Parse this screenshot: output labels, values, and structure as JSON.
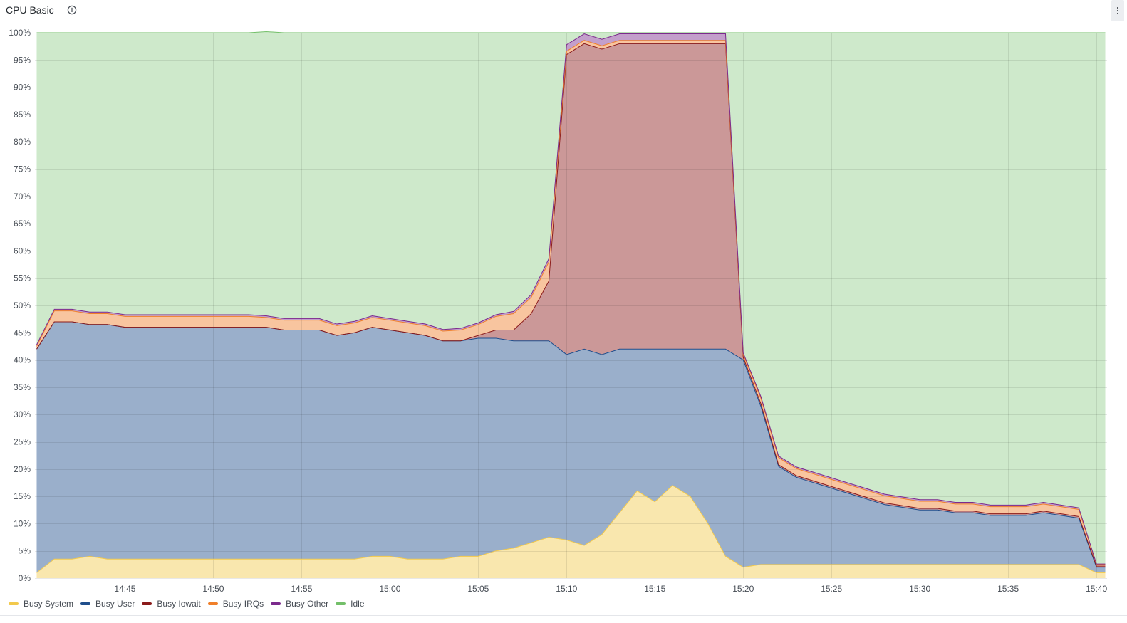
{
  "panel": {
    "title": "CPU Basic"
  },
  "colors": {
    "busy_system": "#f2c94c",
    "busy_user": "#1f4e8c",
    "busy_iowait": "#8b1a1a",
    "busy_irqs": "#f07f2a",
    "busy_other": "#7b2a8c",
    "idle": "#73bf69"
  },
  "chart_data": {
    "type": "area",
    "stacked": true,
    "x_ticks": [
      "14:45",
      "14:50",
      "14:55",
      "15:00",
      "15:05",
      "15:10",
      "15:15",
      "15:20",
      "15:25",
      "15:30",
      "15:35",
      "15:40"
    ],
    "x_ticks_minutes": [
      4,
      9,
      14,
      19,
      24,
      29,
      34,
      39,
      44,
      49,
      54,
      59
    ],
    "x_range_minutes": [
      -1.1,
      59.6
    ],
    "y_ticks": [
      "0%",
      "5%",
      "10%",
      "15%",
      "20%",
      "25%",
      "30%",
      "35%",
      "40%",
      "45%",
      "50%",
      "55%",
      "60%",
      "65%",
      "70%",
      "75%",
      "80%",
      "85%",
      "90%",
      "95%",
      "100%"
    ],
    "ylim": [
      0,
      100
    ],
    "grid": true,
    "legend_position": "bottom-left",
    "x_minutes": [
      -1,
      0,
      1,
      2,
      3,
      4,
      5,
      6,
      7,
      8,
      9,
      10,
      11,
      12,
      13,
      14,
      15,
      16,
      17,
      18,
      19,
      20,
      21,
      22,
      23,
      24,
      25,
      26,
      27,
      28,
      29,
      30,
      31,
      32,
      33,
      34,
      35,
      36,
      37,
      38,
      39,
      40,
      41,
      42,
      43,
      44,
      45,
      46,
      47,
      48,
      49,
      50,
      51,
      52,
      53,
      54,
      55,
      56,
      57,
      58,
      59,
      59.5
    ],
    "series": [
      {
        "name": "Busy System",
        "values": [
          1,
          3.5,
          3.5,
          4,
          3.5,
          3.5,
          3.5,
          3.5,
          3.5,
          3.5,
          3.5,
          3.5,
          3.5,
          3.5,
          3.5,
          3.5,
          3.5,
          3.5,
          3.5,
          4,
          4,
          3.5,
          3.5,
          3.5,
          4,
          4,
          5,
          5.5,
          6.5,
          7.5,
          7,
          6,
          8,
          12,
          16,
          14,
          17,
          15,
          10,
          4,
          2,
          2.5,
          2.5,
          2.5,
          2.5,
          2.5,
          2.5,
          2.5,
          2.5,
          2.5,
          2.5,
          2.5,
          2.5,
          2.5,
          2.5,
          2.5,
          2.5,
          2.5,
          2.5,
          2.5,
          1,
          1
        ]
      },
      {
        "name": "Busy User",
        "values": [
          41,
          43.5,
          43.5,
          42.5,
          43,
          42.5,
          42.5,
          42.5,
          42.5,
          42.5,
          42.5,
          42.5,
          42.5,
          42.5,
          42,
          42,
          42,
          41,
          41.5,
          42,
          41.5,
          41.5,
          41,
          40,
          39.5,
          40,
          39,
          38,
          37,
          36,
          34,
          36,
          33,
          30,
          26,
          28,
          25,
          27,
          32,
          38,
          38,
          29,
          18,
          16,
          15,
          14,
          13,
          12,
          11,
          10.5,
          10,
          10,
          9.5,
          9.5,
          9,
          9,
          9,
          9.5,
          9,
          8.5,
          1,
          1
        ]
      },
      {
        "name": "Busy Iowait",
        "values": [
          0,
          0,
          0,
          0,
          0,
          0,
          0,
          0,
          0,
          0,
          0,
          0,
          0,
          0,
          0,
          0,
          0,
          0,
          0,
          0,
          0,
          0,
          0,
          0,
          0,
          0.5,
          1.5,
          2,
          5,
          11,
          55,
          56,
          56,
          56,
          56,
          56,
          56,
          56,
          56,
          56,
          0.5,
          0.5,
          0.3,
          0.3,
          0.3,
          0.3,
          0.3,
          0.3,
          0.3,
          0.3,
          0.3,
          0.3,
          0.3,
          0.3,
          0.3,
          0.3,
          0.3,
          0.3,
          0.3,
          0.3,
          0.2,
          0.2
        ]
      },
      {
        "name": "Busy IRQs",
        "values": [
          0.5,
          2,
          2,
          2,
          2,
          2,
          2,
          2,
          2,
          2,
          2,
          2,
          2,
          1.8,
          1.8,
          1.8,
          1.8,
          1.8,
          1.8,
          1.8,
          1.8,
          1.8,
          1.8,
          1.8,
          2,
          2,
          2.5,
          3,
          3,
          3.5,
          0.6,
          0.6,
          0.6,
          0.6,
          0.6,
          0.6,
          0.6,
          0.6,
          0.6,
          0.6,
          0.5,
          1,
          1.3,
          1.3,
          1.3,
          1.3,
          1.3,
          1.3,
          1.3,
          1.3,
          1.3,
          1.3,
          1.3,
          1.3,
          1.3,
          1.3,
          1.3,
          1.3,
          1.3,
          1.3,
          0.3,
          0.3
        ]
      },
      {
        "name": "Busy Other",
        "values": [
          0.3,
          0.3,
          0.3,
          0.3,
          0.3,
          0.3,
          0.3,
          0.3,
          0.3,
          0.3,
          0.3,
          0.3,
          0.3,
          0.3,
          0.3,
          0.3,
          0.3,
          0.3,
          0.3,
          0.3,
          0.3,
          0.3,
          0.3,
          0.3,
          0.3,
          0.3,
          0.3,
          0.4,
          0.5,
          0.6,
          1.2,
          1.2,
          1.2,
          1.2,
          1.2,
          1.2,
          1.2,
          1.2,
          1.2,
          1.2,
          0.3,
          0.3,
          0.3,
          0.3,
          0.3,
          0.3,
          0.3,
          0.3,
          0.3,
          0.3,
          0.3,
          0.3,
          0.3,
          0.3,
          0.3,
          0.3,
          0.3,
          0.3,
          0.3,
          0.3,
          0.1,
          0.1
        ]
      },
      {
        "name": "Idle",
        "values": [
          57.2,
          50.7,
          50.7,
          51.2,
          51.2,
          51.7,
          51.7,
          51.7,
          51.7,
          51.7,
          51.7,
          51.7,
          51.7,
          52.1,
          52.4,
          52.4,
          52.4,
          53.4,
          52.9,
          51.9,
          52.4,
          52.9,
          53.4,
          54.4,
          54.2,
          53.2,
          51.7,
          51.1,
          48,
          41.4,
          2.2,
          0.2,
          1.2,
          0.2,
          0.2,
          0.2,
          0.2,
          0.2,
          0.2,
          0.2,
          58.7,
          66.7,
          77.6,
          79.6,
          80.6,
          81.6,
          82.6,
          83.6,
          84.6,
          85.1,
          85.6,
          85.6,
          86.1,
          86.1,
          86.6,
          86.6,
          86.6,
          86.1,
          86.6,
          87.1,
          97.4,
          97.4
        ]
      }
    ]
  }
}
